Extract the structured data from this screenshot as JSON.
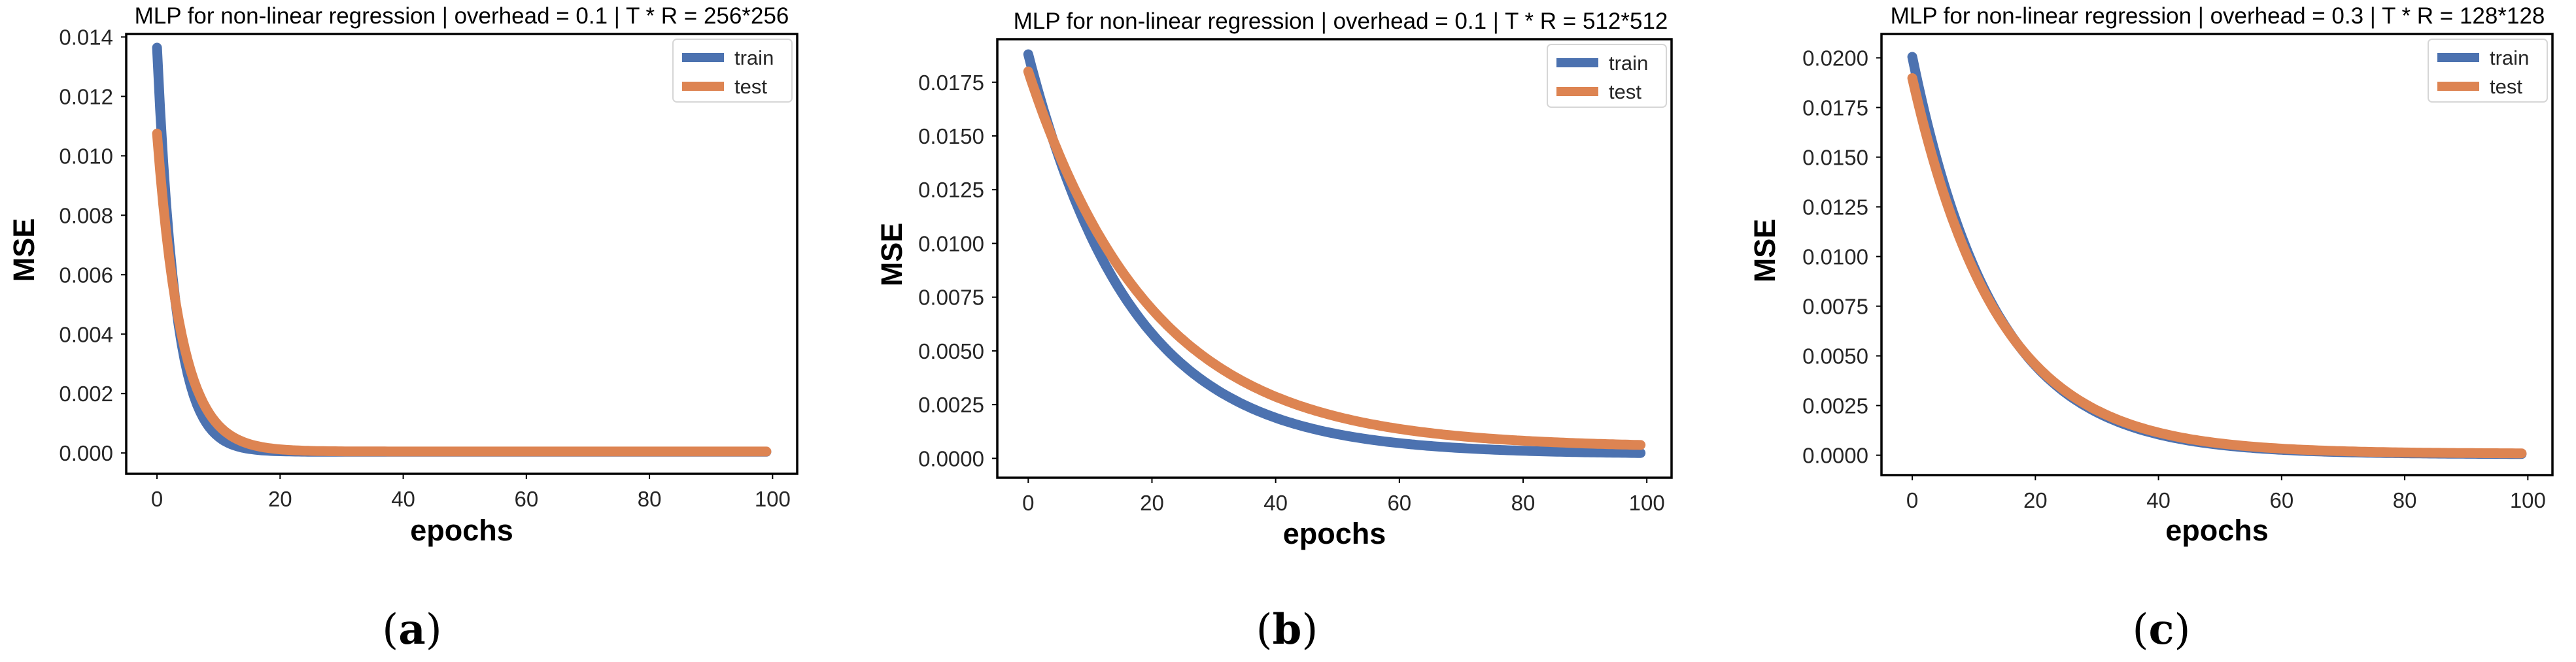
{
  "colors": {
    "train": "#4C72B0",
    "test": "#DD8452"
  },
  "chart_data": [
    {
      "type": "line",
      "title": "MLP for non-linear regression | overhead = 0.1  | T * R = 256*256",
      "xlabel": "epochs",
      "ylabel": "MSE",
      "xlim": [
        -5,
        104
      ],
      "ylim": [
        -0.0007,
        0.0141
      ],
      "xticks": [
        0,
        20,
        40,
        60,
        80,
        100
      ],
      "xtick_labels": [
        "0",
        "20",
        "40",
        "60",
        "80",
        "100"
      ],
      "yticks": [
        0,
        0.002,
        0.004,
        0.006,
        0.008,
        0.01,
        0.012,
        0.014
      ],
      "ytick_labels": [
        "0.000",
        "0.002",
        "0.004",
        "0.006",
        "0.008",
        "0.010",
        "0.012",
        "0.014"
      ],
      "legend": "top-right",
      "series": [
        {
          "name": "train",
          "model": {
            "a": 0.0136,
            "k": 0.33,
            "c": 4e-05
          }
        },
        {
          "name": "test",
          "model": {
            "a": 0.0107,
            "k": 0.25,
            "c": 5e-05
          }
        }
      ],
      "caption": "a"
    },
    {
      "type": "line",
      "title": "MLP for non-linear regression | overhead = 0.1  | T * R = 512*512",
      "xlabel": "epochs",
      "ylabel": "MSE",
      "xlim": [
        -5,
        104
      ],
      "ylim": [
        -0.0009,
        0.0195
      ],
      "xticks": [
        0,
        20,
        40,
        60,
        80,
        100
      ],
      "xtick_labels": [
        "0",
        "20",
        "40",
        "60",
        "80",
        "100"
      ],
      "yticks": [
        0,
        0.0025,
        0.005,
        0.0075,
        0.01,
        0.0125,
        0.015,
        0.0175
      ],
      "ytick_labels": [
        "0.0000",
        "0.0025",
        "0.0050",
        "0.0075",
        "0.0100",
        "0.0125",
        "0.0150",
        "0.0175"
      ],
      "legend": "top-right",
      "series": [
        {
          "name": "train",
          "model": {
            "a": 0.0186,
            "k": 0.06,
            "c": 0.0002
          }
        },
        {
          "name": "test",
          "model": {
            "a": 0.0175,
            "k": 0.05,
            "c": 0.0005
          }
        }
      ],
      "caption": "b"
    },
    {
      "type": "line",
      "title": "MLP for non-linear regression | overhead = 0.3  | T * R = 128*128",
      "xlabel": "epochs",
      "ylabel": "MSE",
      "xlim": [
        -5,
        104
      ],
      "ylim": [
        -0.001,
        0.0212
      ],
      "xticks": [
        0,
        20,
        40,
        60,
        80,
        100
      ],
      "xtick_labels": [
        "0",
        "20",
        "40",
        "60",
        "80",
        "100"
      ],
      "yticks": [
        0,
        0.0025,
        0.005,
        0.0075,
        0.01,
        0.0125,
        0.015,
        0.0175,
        0.02
      ],
      "ytick_labels": [
        "0.0000",
        "0.0025",
        "0.0050",
        "0.0075",
        "0.0100",
        "0.0125",
        "0.0150",
        "0.0175",
        "0.0200"
      ],
      "legend": "top-right",
      "series": [
        {
          "name": "train",
          "model": {
            "a": 0.02,
            "k": 0.075,
            "c": 5e-05
          }
        },
        {
          "name": "test",
          "model": {
            "a": 0.0189,
            "k": 0.072,
            "c": 8e-05
          }
        }
      ],
      "caption": "c"
    }
  ]
}
